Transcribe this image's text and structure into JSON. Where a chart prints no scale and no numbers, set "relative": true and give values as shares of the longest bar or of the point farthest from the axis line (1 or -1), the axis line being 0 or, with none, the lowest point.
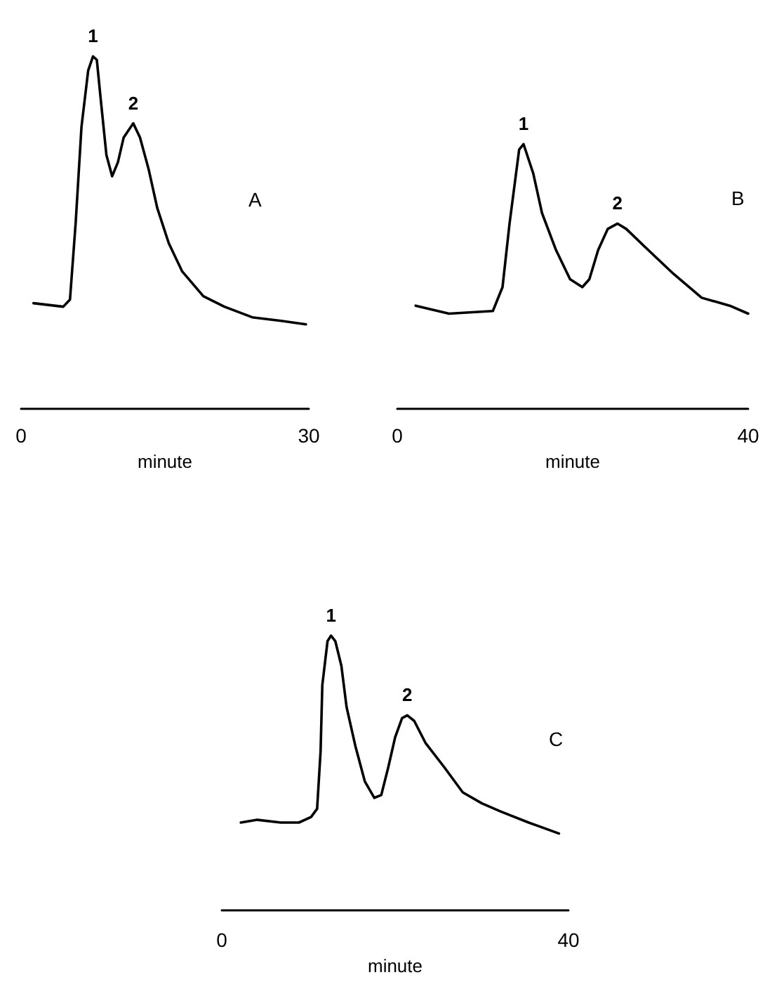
{
  "chart_data": [
    {
      "type": "line",
      "relative": true,
      "xlabel": "minute",
      "xlim": [
        0,
        30
      ],
      "xticks": [
        0,
        30
      ],
      "color": "#000000",
      "x": [
        1.3,
        4.4,
        5.1,
        5.7,
        6.3,
        7.0,
        7.5,
        7.9,
        8.3,
        8.9,
        9.5,
        10.1,
        10.7,
        11.7,
        12.4,
        13.3,
        14.2,
        15.4,
        16.8,
        19.0,
        21.2,
        24.1,
        27.1,
        29.7
      ],
      "values": [
        0.3,
        0.29,
        0.31,
        0.53,
        0.8,
        0.96,
        1.0,
        0.99,
        0.88,
        0.72,
        0.66,
        0.7,
        0.77,
        0.81,
        0.77,
        0.68,
        0.57,
        0.47,
        0.39,
        0.32,
        0.29,
        0.26,
        0.25,
        0.24
      ],
      "annotations": [
        {
          "text": "1",
          "x": 7.5,
          "y": 1.0
        },
        {
          "text": "2",
          "x": 11.7,
          "y": 0.81
        },
        "A"
      ]
    },
    {
      "type": "line",
      "relative": true,
      "xlabel": "minute",
      "xlim": [
        0,
        40
      ],
      "xticks": [
        0,
        40
      ],
      "color": "#000000",
      "x": [
        2.1,
        5.9,
        10.9,
        12.0,
        12.8,
        13.9,
        14.4,
        15.5,
        16.5,
        18.1,
        19.7,
        21.1,
        21.9,
        22.9,
        24.0,
        25.1,
        26.1,
        28.3,
        31.5,
        34.7,
        37.9,
        40.0
      ],
      "values": [
        0.39,
        0.36,
        0.37,
        0.46,
        0.7,
        0.98,
        1.0,
        0.89,
        0.74,
        0.6,
        0.49,
        0.46,
        0.49,
        0.6,
        0.68,
        0.7,
        0.68,
        0.61,
        0.51,
        0.42,
        0.39,
        0.36
      ],
      "annotations": [
        {
          "text": "1",
          "x": 14.4,
          "y": 1.0
        },
        {
          "text": "2",
          "x": 25.1,
          "y": 0.7
        },
        "B"
      ]
    },
    {
      "type": "line",
      "relative": true,
      "xlabel": "minute",
      "xlim": [
        0,
        40
      ],
      "xticks": [
        0,
        40
      ],
      "color": "#000000",
      "x": [
        2.2,
        4.1,
        6.8,
        8.9,
        10.3,
        11.0,
        11.4,
        11.6,
        12.2,
        12.6,
        13.1,
        13.8,
        14.4,
        15.4,
        16.5,
        17.6,
        18.4,
        19.2,
        20.0,
        20.8,
        21.4,
        22.2,
        23.5,
        25.7,
        27.8,
        30.0,
        32.2,
        35.4,
        38.9
      ],
      "values": [
        0.32,
        0.33,
        0.32,
        0.32,
        0.34,
        0.37,
        0.58,
        0.82,
        0.98,
        1.0,
        0.98,
        0.89,
        0.74,
        0.6,
        0.47,
        0.41,
        0.42,
        0.52,
        0.63,
        0.7,
        0.71,
        0.69,
        0.61,
        0.52,
        0.43,
        0.39,
        0.36,
        0.32,
        0.28
      ],
      "annotations": [
        {
          "text": "1",
          "x": 12.6,
          "y": 1.0
        },
        {
          "text": "2",
          "x": 21.4,
          "y": 0.71
        },
        "C"
      ]
    }
  ]
}
